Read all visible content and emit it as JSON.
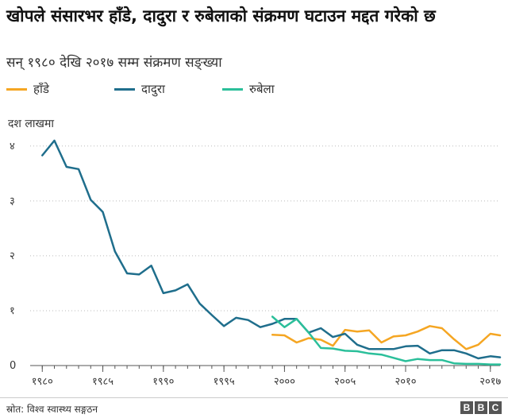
{
  "title": "खोपले संसारभर हाँडे, दादुरा र रुबेलाको संक्रमण घटाउन मद्दत गरेको छ",
  "subtitle": "सन् १९८० देखि २०१७ सम्म संक्रमण सङ्ख्या",
  "source": "स्रोत: विश्व स्वास्थ्य सङ्गठन",
  "logo": [
    "B",
    "B",
    "C"
  ],
  "chart_data": {
    "type": "line",
    "ylabel": "दश लाखमा",
    "xlim": [
      1979,
      2017.8
    ],
    "ylim": [
      0,
      4.2
    ],
    "grid": "horizontal-dotted",
    "legend": "top-left",
    "y_ticks": [
      {
        "value": 0,
        "label": "0"
      },
      {
        "value": 1,
        "label": "१"
      },
      {
        "value": 2,
        "label": "२"
      },
      {
        "value": 3,
        "label": "३"
      },
      {
        "value": 4,
        "label": "४"
      }
    ],
    "x_ticks": [
      {
        "value": 1980,
        "label": "१९८०"
      },
      {
        "value": 1985,
        "label": "१९८५"
      },
      {
        "value": 1990,
        "label": "१९९०"
      },
      {
        "value": 1995,
        "label": "१९९५"
      },
      {
        "value": 2000,
        "label": "२०००"
      },
      {
        "value": 2005,
        "label": "२००५"
      },
      {
        "value": 2010,
        "label": "२०१०"
      },
      {
        "value": 2017,
        "label": "२०१७"
      }
    ],
    "series": [
      {
        "name": "हाँडे",
        "color": "#f5a623",
        "points": [
          [
            1999,
            0.56
          ],
          [
            2000,
            0.55
          ],
          [
            2001,
            0.42
          ],
          [
            2002,
            0.5
          ],
          [
            2003,
            0.47
          ],
          [
            2004,
            0.36
          ],
          [
            2005,
            0.65
          ],
          [
            2006,
            0.62
          ],
          [
            2007,
            0.64
          ],
          [
            2008,
            0.42
          ],
          [
            2009,
            0.53
          ],
          [
            2010,
            0.55
          ],
          [
            2011,
            0.62
          ],
          [
            2012,
            0.72
          ],
          [
            2013,
            0.68
          ],
          [
            2014,
            0.48
          ],
          [
            2015,
            0.3
          ],
          [
            2016,
            0.38
          ],
          [
            2017,
            0.58
          ],
          [
            2017.8,
            0.55
          ]
        ]
      },
      {
        "name": "दादुरा",
        "color": "#1f6e8c",
        "points": [
          [
            1980,
            3.83
          ],
          [
            1981,
            4.1
          ],
          [
            1982,
            3.62
          ],
          [
            1983,
            3.58
          ],
          [
            1984,
            3.02
          ],
          [
            1985,
            2.8
          ],
          [
            1986,
            2.08
          ],
          [
            1987,
            1.68
          ],
          [
            1988,
            1.66
          ],
          [
            1989,
            1.82
          ],
          [
            1990,
            1.32
          ],
          [
            1991,
            1.37
          ],
          [
            1992,
            1.48
          ],
          [
            1993,
            1.13
          ],
          [
            1994,
            0.92
          ],
          [
            1995,
            0.72
          ],
          [
            1996,
            0.87
          ],
          [
            1997,
            0.83
          ],
          [
            1998,
            0.7
          ],
          [
            1999,
            0.76
          ],
          [
            2000,
            0.85
          ],
          [
            2001,
            0.85
          ],
          [
            2002,
            0.6
          ],
          [
            2003,
            0.68
          ],
          [
            2004,
            0.52
          ],
          [
            2005,
            0.58
          ],
          [
            2006,
            0.38
          ],
          [
            2007,
            0.3
          ],
          [
            2008,
            0.3
          ],
          [
            2009,
            0.3
          ],
          [
            2010,
            0.35
          ],
          [
            2011,
            0.36
          ],
          [
            2012,
            0.22
          ],
          [
            2013,
            0.28
          ],
          [
            2014,
            0.28
          ],
          [
            2015,
            0.22
          ],
          [
            2016,
            0.13
          ],
          [
            2017,
            0.17
          ],
          [
            2017.8,
            0.15
          ]
        ]
      },
      {
        "name": "रुबेला",
        "color": "#2bbf9a",
        "points": [
          [
            1999,
            0.89
          ],
          [
            2000,
            0.7
          ],
          [
            2001,
            0.85
          ],
          [
            2002,
            0.6
          ],
          [
            2003,
            0.32
          ],
          [
            2004,
            0.31
          ],
          [
            2005,
            0.27
          ],
          [
            2006,
            0.26
          ],
          [
            2007,
            0.22
          ],
          [
            2008,
            0.2
          ],
          [
            2009,
            0.14
          ],
          [
            2010,
            0.08
          ],
          [
            2011,
            0.12
          ],
          [
            2012,
            0.1
          ],
          [
            2013,
            0.1
          ],
          [
            2014,
            0.04
          ],
          [
            2015,
            0.03
          ],
          [
            2016,
            0.03
          ],
          [
            2017,
            0.02
          ],
          [
            2017.8,
            0.02
          ]
        ]
      }
    ]
  }
}
